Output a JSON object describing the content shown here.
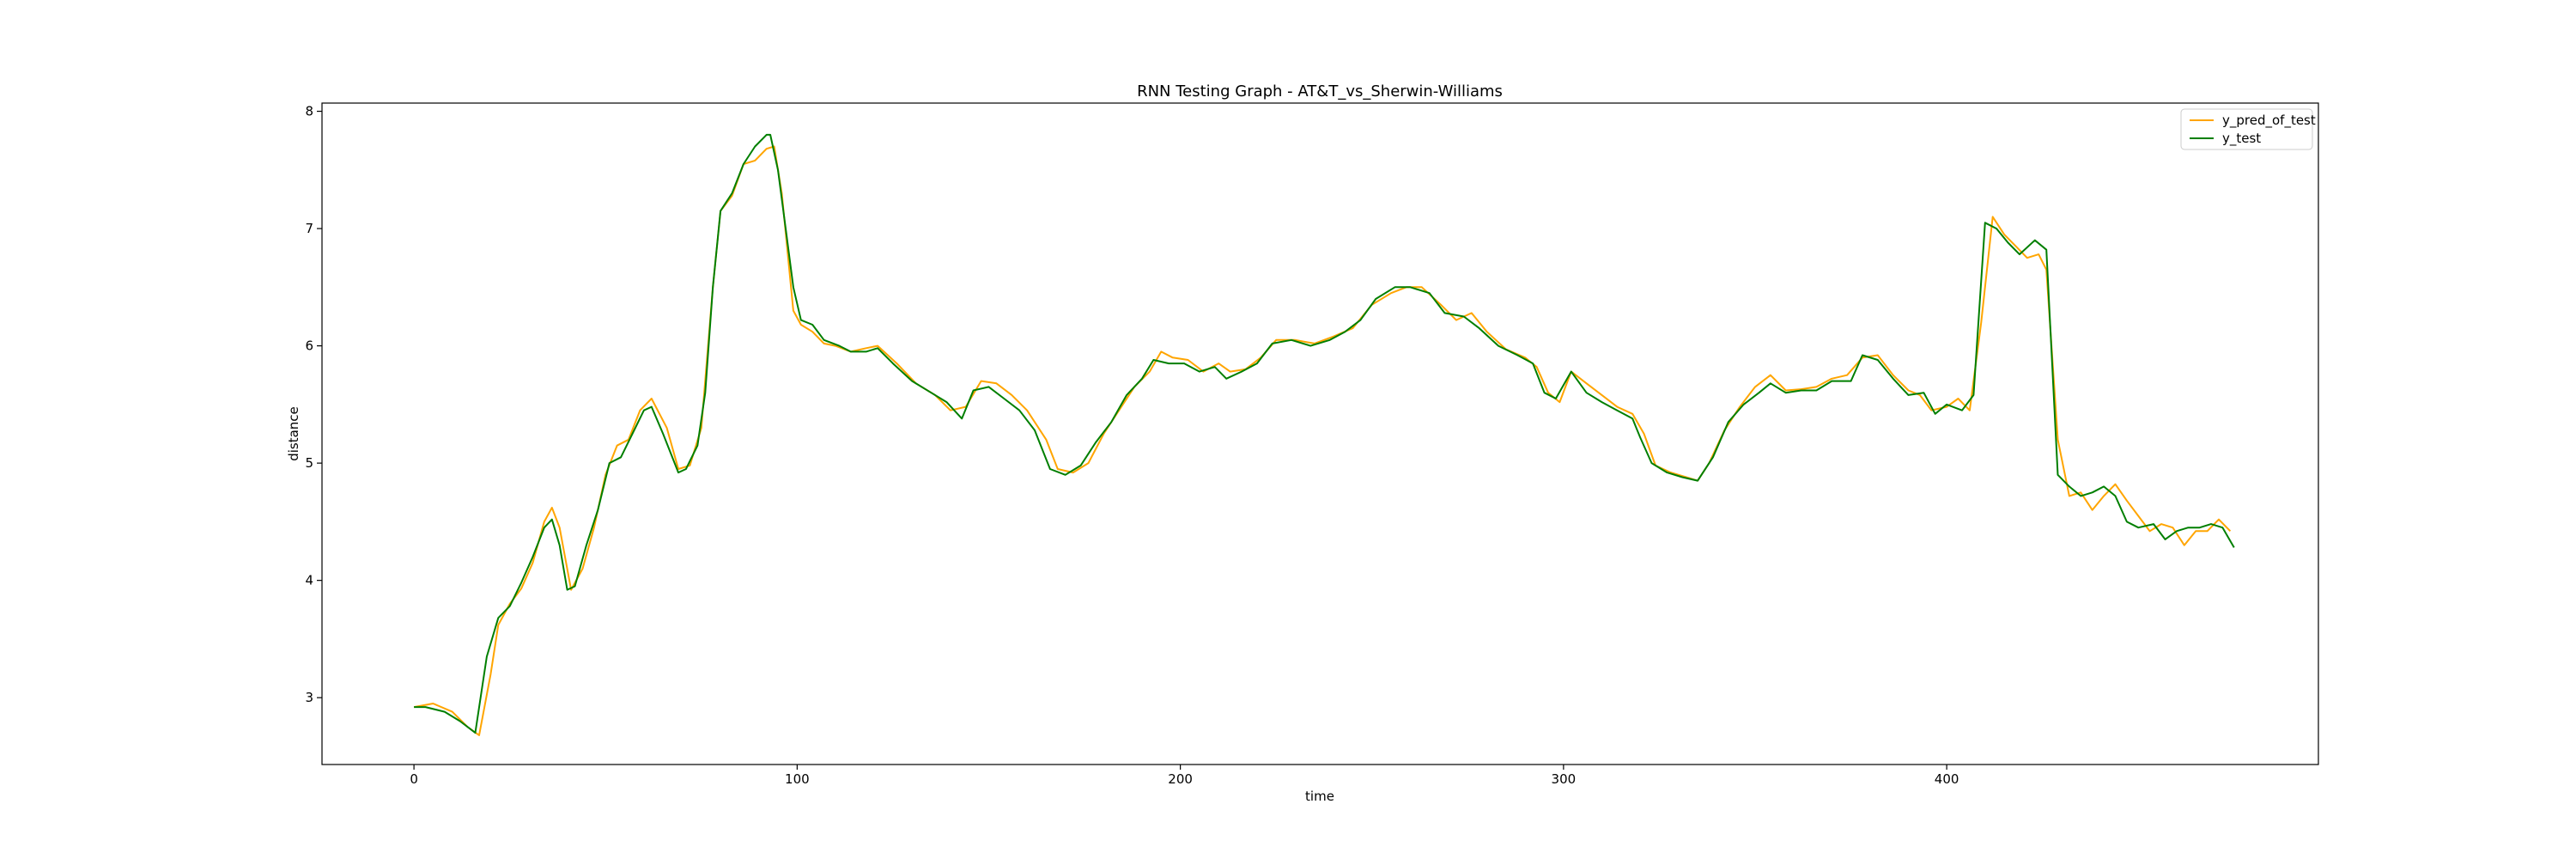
{
  "chart_data": {
    "type": "line",
    "title": "RNN Testing Graph - AT&T_vs_Sherwin-Williams",
    "xlabel": "time",
    "ylabel": "distance",
    "xlim": [
      -24,
      497
    ],
    "ylim": [
      2.43,
      8.07
    ],
    "xticks": [
      0,
      100,
      200,
      300,
      400
    ],
    "yticks": [
      3,
      4,
      5,
      6,
      7,
      8
    ],
    "grid": false,
    "legend_position": "top-right",
    "series": [
      {
        "name": "y_pred_of_test",
        "color": "#ffa500",
        "points": [
          [
            0,
            2.92
          ],
          [
            5,
            2.95
          ],
          [
            10,
            2.88
          ],
          [
            14,
            2.75
          ],
          [
            17,
            2.68
          ],
          [
            20,
            3.2
          ],
          [
            22,
            3.62
          ],
          [
            25,
            3.8
          ],
          [
            28,
            3.93
          ],
          [
            31,
            4.15
          ],
          [
            34,
            4.5
          ],
          [
            36,
            4.62
          ],
          [
            38,
            4.45
          ],
          [
            41,
            3.92
          ],
          [
            44,
            4.1
          ],
          [
            47,
            4.45
          ],
          [
            50,
            4.9
          ],
          [
            53,
            5.15
          ],
          [
            56,
            5.2
          ],
          [
            59,
            5.45
          ],
          [
            62,
            5.55
          ],
          [
            66,
            5.3
          ],
          [
            69,
            4.95
          ],
          [
            72,
            4.98
          ],
          [
            75,
            5.3
          ],
          [
            78,
            6.5
          ],
          [
            80,
            7.15
          ],
          [
            83,
            7.28
          ],
          [
            86,
            7.55
          ],
          [
            89,
            7.58
          ],
          [
            92,
            7.68
          ],
          [
            94,
            7.7
          ],
          [
            96,
            7.3
          ],
          [
            99,
            6.3
          ],
          [
            101,
            6.18
          ],
          [
            104,
            6.12
          ],
          [
            107,
            6.02
          ],
          [
            110,
            6.0
          ],
          [
            114,
            5.95
          ],
          [
            118,
            5.98
          ],
          [
            121,
            6.0
          ],
          [
            126,
            5.85
          ],
          [
            131,
            5.68
          ],
          [
            136,
            5.58
          ],
          [
            140,
            5.45
          ],
          [
            144,
            5.48
          ],
          [
            148,
            5.7
          ],
          [
            152,
            5.68
          ],
          [
            156,
            5.58
          ],
          [
            160,
            5.45
          ],
          [
            165,
            5.2
          ],
          [
            168,
            4.95
          ],
          [
            172,
            4.92
          ],
          [
            176,
            5.0
          ],
          [
            180,
            5.25
          ],
          [
            184,
            5.45
          ],
          [
            188,
            5.65
          ],
          [
            192,
            5.78
          ],
          [
            195,
            5.95
          ],
          [
            198,
            5.9
          ],
          [
            202,
            5.88
          ],
          [
            206,
            5.78
          ],
          [
            210,
            5.85
          ],
          [
            213,
            5.78
          ],
          [
            217,
            5.8
          ],
          [
            221,
            5.9
          ],
          [
            225,
            6.05
          ],
          [
            230,
            6.05
          ],
          [
            235,
            6.02
          ],
          [
            240,
            6.08
          ],
          [
            245,
            6.15
          ],
          [
            250,
            6.35
          ],
          [
            255,
            6.45
          ],
          [
            259,
            6.5
          ],
          [
            263,
            6.5
          ],
          [
            268,
            6.35
          ],
          [
            272,
            6.22
          ],
          [
            276,
            6.28
          ],
          [
            280,
            6.12
          ],
          [
            285,
            5.97
          ],
          [
            290,
            5.9
          ],
          [
            293,
            5.82
          ],
          [
            296,
            5.6
          ],
          [
            299,
            5.52
          ],
          [
            302,
            5.78
          ],
          [
            306,
            5.68
          ],
          [
            310,
            5.58
          ],
          [
            314,
            5.48
          ],
          [
            318,
            5.42
          ],
          [
            321,
            5.25
          ],
          [
            324,
            4.98
          ],
          [
            328,
            4.92
          ],
          [
            332,
            4.88
          ],
          [
            335,
            4.85
          ],
          [
            338,
            5.0
          ],
          [
            342,
            5.28
          ],
          [
            346,
            5.48
          ],
          [
            350,
            5.65
          ],
          [
            354,
            5.75
          ],
          [
            358,
            5.62
          ],
          [
            362,
            5.63
          ],
          [
            366,
            5.65
          ],
          [
            370,
            5.72
          ],
          [
            374,
            5.75
          ],
          [
            378,
            5.9
          ],
          [
            382,
            5.92
          ],
          [
            386,
            5.75
          ],
          [
            390,
            5.62
          ],
          [
            393,
            5.58
          ],
          [
            396,
            5.45
          ],
          [
            400,
            5.48
          ],
          [
            403,
            5.55
          ],
          [
            406,
            5.45
          ],
          [
            409,
            6.2
          ],
          [
            412,
            7.1
          ],
          [
            415,
            6.95
          ],
          [
            418,
            6.85
          ],
          [
            421,
            6.75
          ],
          [
            424,
            6.78
          ],
          [
            426,
            6.65
          ],
          [
            429,
            5.2
          ],
          [
            432,
            4.72
          ],
          [
            435,
            4.75
          ],
          [
            438,
            4.6
          ],
          [
            441,
            4.72
          ],
          [
            444,
            4.82
          ],
          [
            447,
            4.68
          ],
          [
            450,
            4.55
          ],
          [
            453,
            4.42
          ],
          [
            456,
            4.48
          ],
          [
            459,
            4.45
          ],
          [
            462,
            4.3
          ],
          [
            465,
            4.42
          ],
          [
            468,
            4.42
          ],
          [
            471,
            4.52
          ],
          [
            474,
            4.42
          ]
        ]
      },
      {
        "name": "y_test",
        "color": "#007f00",
        "points": [
          [
            0,
            2.92
          ],
          [
            3,
            2.92
          ],
          [
            8,
            2.88
          ],
          [
            12,
            2.8
          ],
          [
            16,
            2.7
          ],
          [
            19,
            3.35
          ],
          [
            22,
            3.68
          ],
          [
            25,
            3.78
          ],
          [
            28,
            3.98
          ],
          [
            31,
            4.2
          ],
          [
            34,
            4.45
          ],
          [
            36,
            4.52
          ],
          [
            38,
            4.3
          ],
          [
            40,
            3.92
          ],
          [
            42,
            3.95
          ],
          [
            45,
            4.3
          ],
          [
            48,
            4.6
          ],
          [
            51,
            5.0
          ],
          [
            54,
            5.05
          ],
          [
            57,
            5.25
          ],
          [
            60,
            5.45
          ],
          [
            62,
            5.48
          ],
          [
            65,
            5.25
          ],
          [
            69,
            4.92
          ],
          [
            71,
            4.95
          ],
          [
            74,
            5.15
          ],
          [
            76,
            5.6
          ],
          [
            78,
            6.5
          ],
          [
            80,
            7.15
          ],
          [
            83,
            7.3
          ],
          [
            86,
            7.55
          ],
          [
            89,
            7.7
          ],
          [
            92,
            7.8
          ],
          [
            93,
            7.8
          ],
          [
            95,
            7.5
          ],
          [
            97,
            7.0
          ],
          [
            99,
            6.5
          ],
          [
            101,
            6.22
          ],
          [
            104,
            6.18
          ],
          [
            107,
            6.05
          ],
          [
            111,
            6.0
          ],
          [
            114,
            5.95
          ],
          [
            118,
            5.95
          ],
          [
            121,
            5.98
          ],
          [
            125,
            5.85
          ],
          [
            130,
            5.7
          ],
          [
            135,
            5.6
          ],
          [
            139,
            5.52
          ],
          [
            143,
            5.38
          ],
          [
            146,
            5.62
          ],
          [
            150,
            5.65
          ],
          [
            154,
            5.55
          ],
          [
            158,
            5.45
          ],
          [
            162,
            5.28
          ],
          [
            166,
            4.95
          ],
          [
            170,
            4.9
          ],
          [
            174,
            4.98
          ],
          [
            178,
            5.18
          ],
          [
            182,
            5.35
          ],
          [
            186,
            5.58
          ],
          [
            190,
            5.72
          ],
          [
            193,
            5.88
          ],
          [
            197,
            5.85
          ],
          [
            201,
            5.85
          ],
          [
            205,
            5.78
          ],
          [
            209,
            5.82
          ],
          [
            212,
            5.72
          ],
          [
            216,
            5.78
          ],
          [
            220,
            5.85
          ],
          [
            224,
            6.02
          ],
          [
            229,
            6.05
          ],
          [
            234,
            6.0
          ],
          [
            239,
            6.05
          ],
          [
            243,
            6.12
          ],
          [
            247,
            6.22
          ],
          [
            251,
            6.4
          ],
          [
            256,
            6.5
          ],
          [
            260,
            6.5
          ],
          [
            265,
            6.45
          ],
          [
            269,
            6.28
          ],
          [
            274,
            6.25
          ],
          [
            278,
            6.15
          ],
          [
            283,
            6.0
          ],
          [
            288,
            5.92
          ],
          [
            292,
            5.85
          ],
          [
            295,
            5.6
          ],
          [
            298,
            5.55
          ],
          [
            302,
            5.78
          ],
          [
            306,
            5.6
          ],
          [
            310,
            5.52
          ],
          [
            314,
            5.45
          ],
          [
            318,
            5.38
          ],
          [
            320,
            5.22
          ],
          [
            323,
            5.0
          ],
          [
            327,
            4.92
          ],
          [
            331,
            4.88
          ],
          [
            335,
            4.85
          ],
          [
            339,
            5.05
          ],
          [
            343,
            5.35
          ],
          [
            347,
            5.5
          ],
          [
            351,
            5.6
          ],
          [
            354,
            5.68
          ],
          [
            358,
            5.6
          ],
          [
            362,
            5.62
          ],
          [
            366,
            5.62
          ],
          [
            370,
            5.7
          ],
          [
            375,
            5.7
          ],
          [
            378,
            5.92
          ],
          [
            382,
            5.88
          ],
          [
            386,
            5.72
          ],
          [
            390,
            5.58
          ],
          [
            394,
            5.6
          ],
          [
            397,
            5.42
          ],
          [
            400,
            5.5
          ],
          [
            404,
            5.45
          ],
          [
            407,
            5.58
          ],
          [
            410,
            7.05
          ],
          [
            413,
            7.0
          ],
          [
            416,
            6.88
          ],
          [
            419,
            6.78
          ],
          [
            423,
            6.9
          ],
          [
            426,
            6.82
          ],
          [
            429,
            4.9
          ],
          [
            432,
            4.8
          ],
          [
            435,
            4.72
          ],
          [
            438,
            4.75
          ],
          [
            441,
            4.8
          ],
          [
            444,
            4.72
          ],
          [
            447,
            4.5
          ],
          [
            450,
            4.45
          ],
          [
            454,
            4.48
          ],
          [
            457,
            4.35
          ],
          [
            460,
            4.42
          ],
          [
            463,
            4.45
          ],
          [
            466,
            4.45
          ],
          [
            469,
            4.48
          ],
          [
            472,
            4.45
          ],
          [
            475,
            4.28
          ]
        ]
      }
    ]
  }
}
